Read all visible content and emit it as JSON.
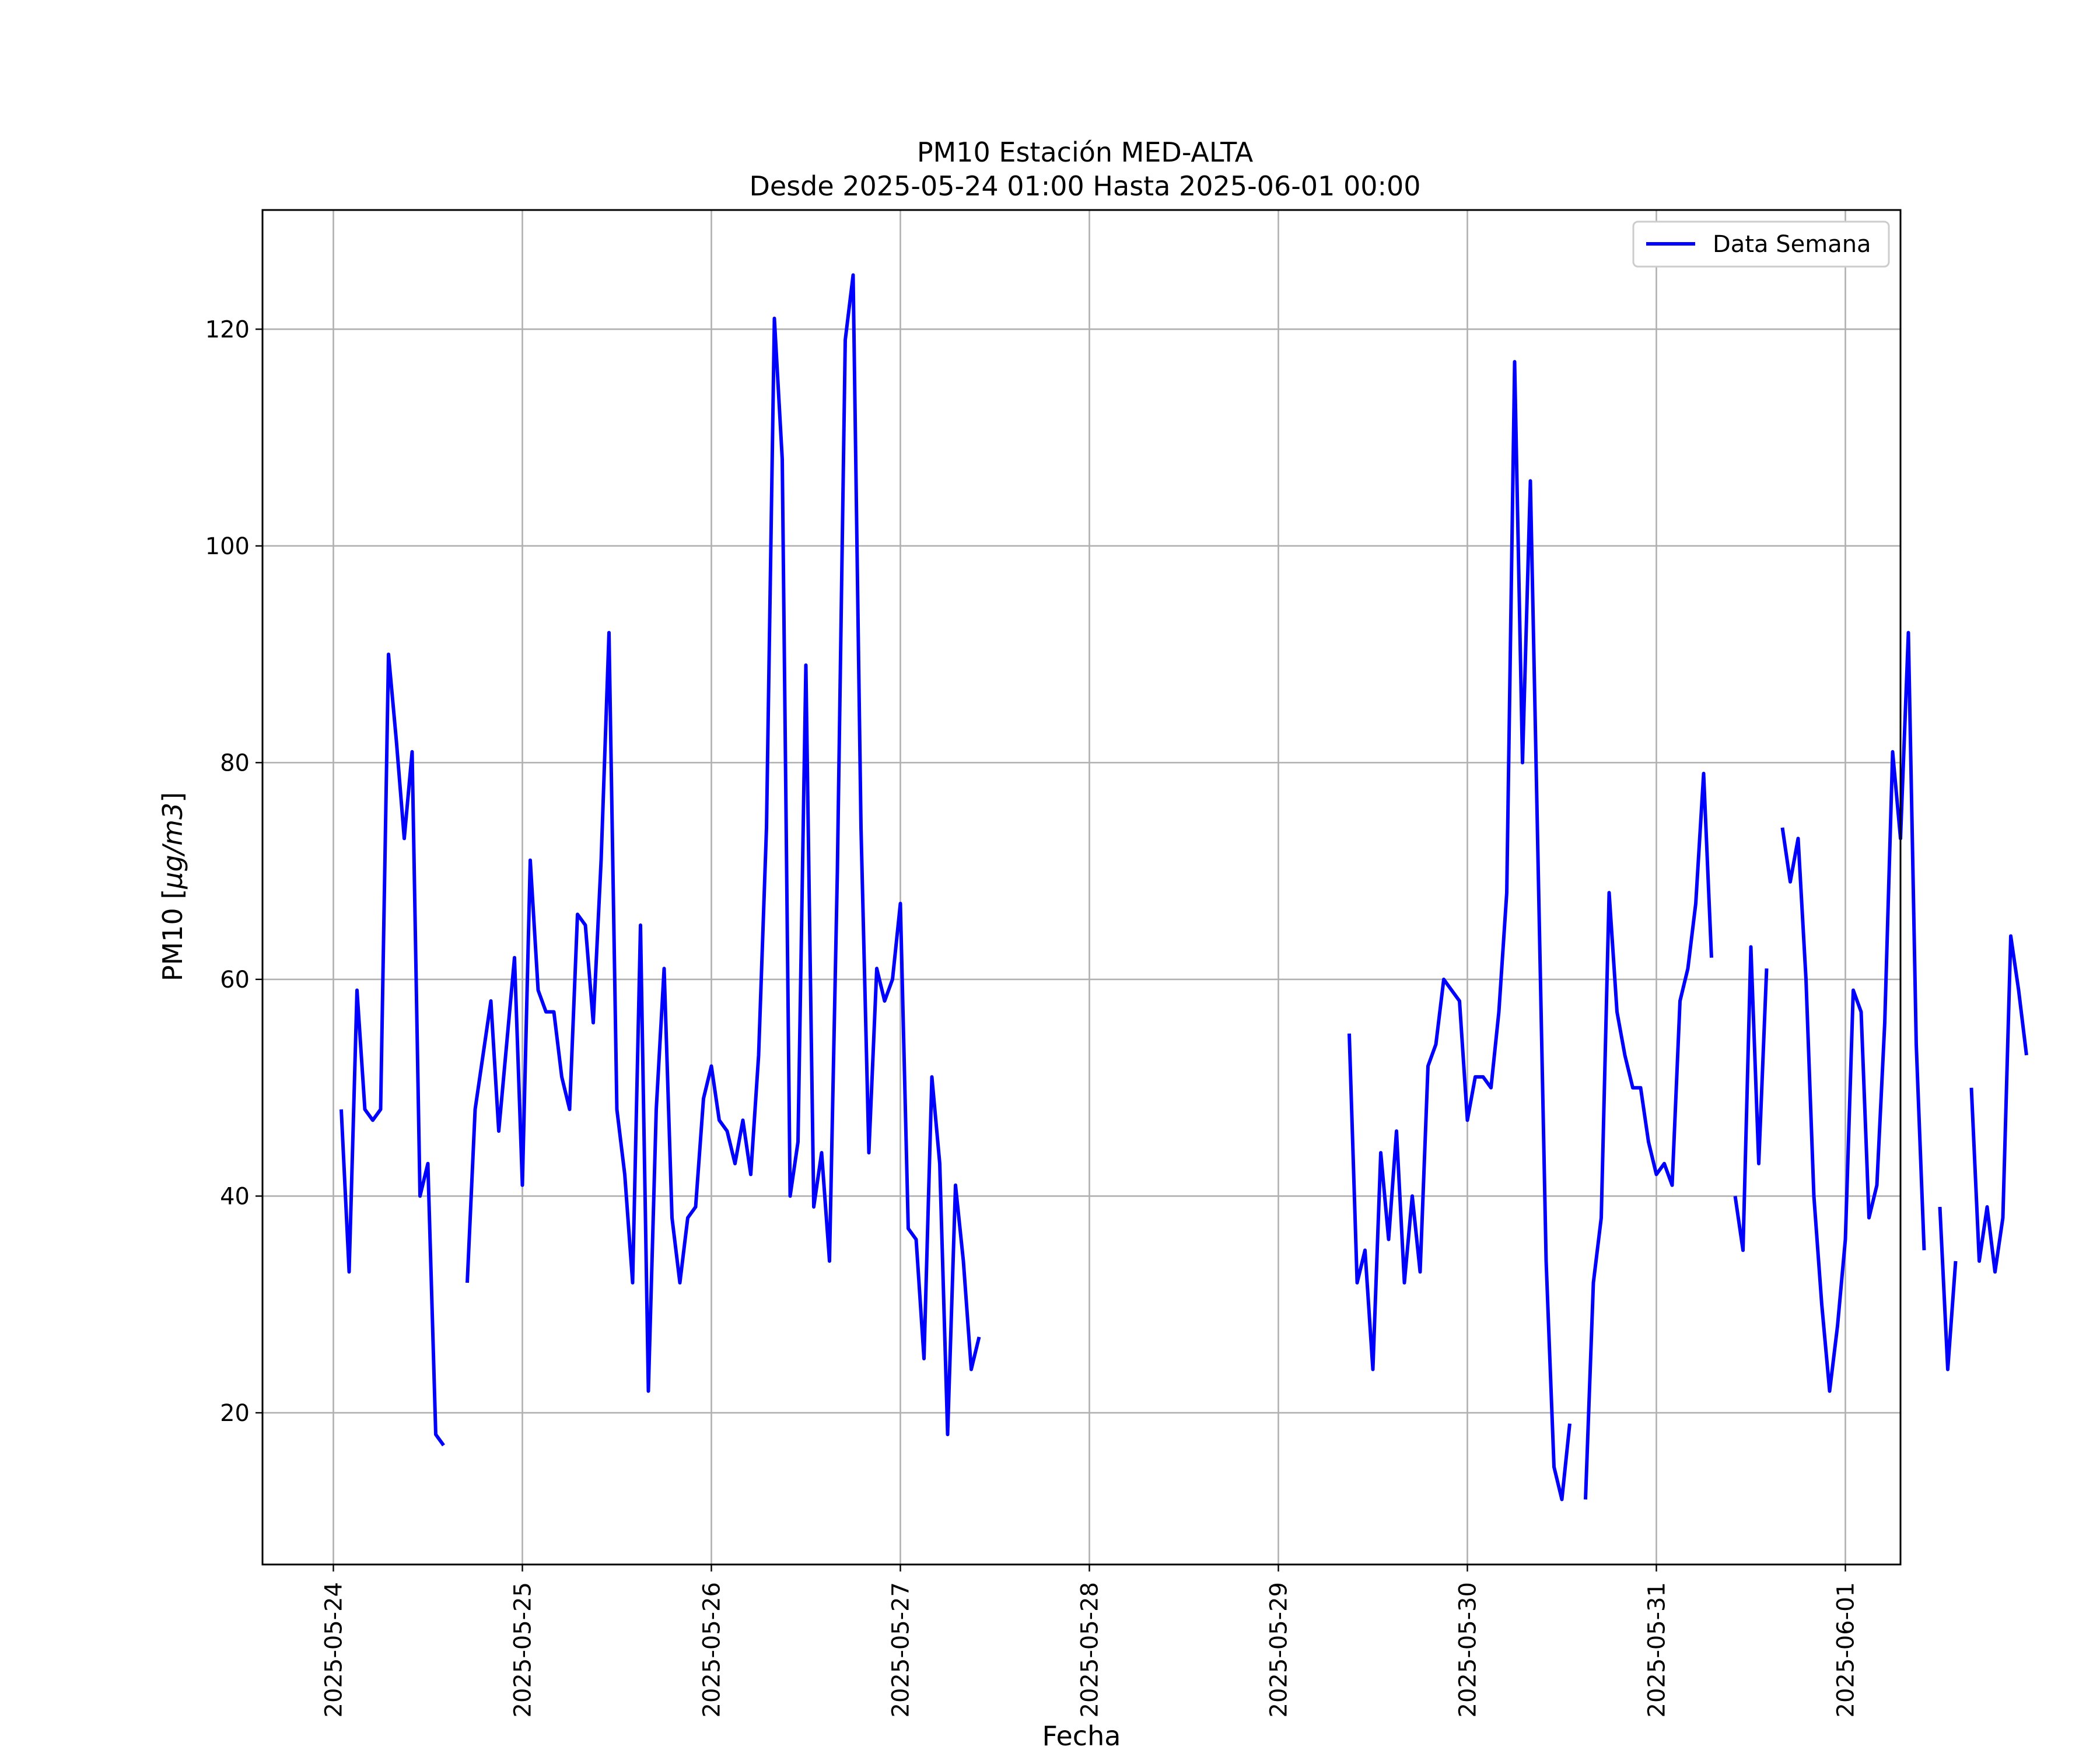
{
  "chart_data": {
    "type": "line",
    "title": "PM10 Estación MED-ALTA",
    "subtitle": "Desde 2025-05-24 01:00 Hasta 2025-06-01 00:00",
    "xlabel": "Fecha",
    "ylabel_prefix": "PM10 [",
    "ylabel_unit": "μg/m3",
    "ylabel_suffix": "]",
    "xlim": [
      "2025-05-23T15:00",
      "2025-06-01T07:00"
    ],
    "ylim": [
      6,
      131
    ],
    "x_ticks": [
      "2025-05-24",
      "2025-05-25",
      "2025-05-26",
      "2025-05-27",
      "2025-05-28",
      "2025-05-29",
      "2025-05-30",
      "2025-05-31",
      "2025-06-01"
    ],
    "y_ticks": [
      20,
      40,
      60,
      80,
      100,
      120
    ],
    "grid": true,
    "legend_position": "upper right",
    "series": [
      {
        "name": "Data Semana",
        "color": "#0000ff",
        "start": "2025-05-24T01:00",
        "step_hours": 1,
        "values": [
          48,
          33,
          59,
          48,
          47,
          48,
          90,
          82,
          73,
          81,
          40,
          43,
          18,
          17,
          null,
          null,
          32,
          48,
          53,
          58,
          46,
          54,
          62,
          41,
          71,
          59,
          57,
          57,
          51,
          48,
          66,
          65,
          56,
          71,
          92,
          48,
          42,
          32,
          65,
          22,
          48,
          61,
          38,
          32,
          38,
          39,
          49,
          52,
          47,
          46,
          43,
          47,
          42,
          53,
          74,
          121,
          108,
          40,
          45,
          89,
          39,
          44,
          34,
          70,
          119,
          125,
          74,
          44,
          61,
          58,
          60,
          67,
          37,
          36,
          25,
          51,
          43,
          18,
          41,
          34,
          24,
          27,
          null,
          null,
          null,
          null,
          null,
          null,
          null,
          null,
          null,
          null,
          null,
          null,
          null,
          null,
          null,
          null,
          null,
          null,
          null,
          null,
          null,
          null,
          null,
          null,
          null,
          null,
          null,
          null,
          null,
          null,
          null,
          null,
          null,
          null,
          null,
          null,
          null,
          null,
          null,
          null,
          null,
          null,
          null,
          null,
          null,
          null,
          55,
          32,
          35,
          24,
          44,
          36,
          46,
          32,
          40,
          33,
          52,
          54,
          60,
          59,
          58,
          47,
          51,
          51,
          50,
          57,
          68,
          117,
          80,
          106,
          70,
          34,
          15,
          12,
          19,
          null,
          12,
          32,
          38,
          68,
          57,
          53,
          50,
          50,
          45,
          42,
          43,
          41,
          58,
          61,
          67,
          79,
          62,
          null,
          null,
          40,
          35,
          63,
          43,
          61,
          null,
          74,
          69,
          73,
          60,
          40,
          30,
          22,
          28,
          36,
          59,
          57,
          38,
          41,
          56,
          81,
          73,
          92,
          54,
          35,
          null,
          39,
          24,
          34,
          null,
          50,
          34,
          39,
          33,
          38,
          64,
          59,
          53
        ]
      }
    ]
  }
}
